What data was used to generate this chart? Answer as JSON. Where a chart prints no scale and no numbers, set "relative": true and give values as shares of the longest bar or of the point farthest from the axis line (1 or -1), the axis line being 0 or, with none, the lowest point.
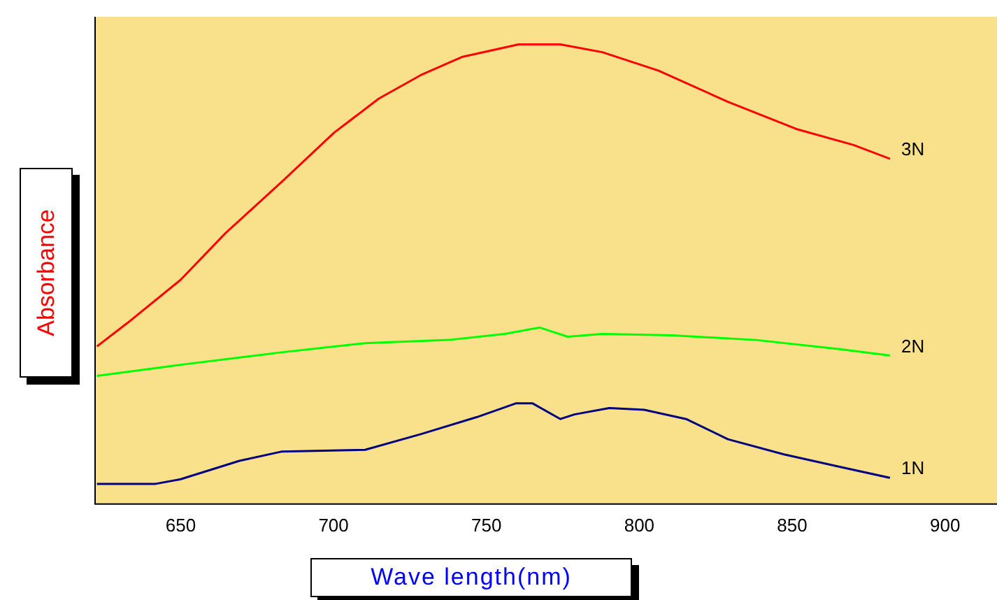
{
  "chart_data": {
    "type": "line",
    "xlabel": "Wave length(nm)",
    "ylabel": "Absorbance",
    "relative": true,
    "xlim": [
      622,
      917
    ],
    "xticks": [
      650,
      700,
      750,
      800,
      850,
      900
    ],
    "grid": false,
    "legend": false,
    "marker": "none",
    "line_style": "solid",
    "series": [
      {
        "name": "3N",
        "color": "#ff0000",
        "x": [
          622.6,
          632.6,
          650,
          664.6,
          682.9,
          700.2,
          714.8,
          728.5,
          742.2,
          760.5,
          774.2,
          787.9,
          806.2,
          829,
          851.8,
          870.1,
          882
        ],
        "values": [
          0.343,
          0.394,
          0.488,
          0.589,
          0.7,
          0.808,
          0.882,
          0.933,
          0.973,
          1.0,
          1.0,
          0.983,
          0.943,
          0.875,
          0.815,
          0.781,
          0.751
        ]
      },
      {
        "name": "2N",
        "color": "#00ff00",
        "x": [
          622.6,
          650,
          682.9,
          710.3,
          737.7,
          756,
          767.4,
          776.6,
          787.9,
          810.7,
          838.1,
          865.5,
          882
        ],
        "values": [
          0.279,
          0.303,
          0.33,
          0.35,
          0.357,
          0.37,
          0.384,
          0.364,
          0.37,
          0.367,
          0.357,
          0.337,
          0.323
        ]
      },
      {
        "name": "1N",
        "color": "#000080",
        "x": [
          622.6,
          641.8,
          650,
          669.2,
          682.9,
          710.3,
          728.5,
          746.8,
          759.6,
          765.1,
          774.2,
          778.8,
          790.2,
          801.6,
          815.3,
          829,
          847.3,
          865.5,
          882
        ],
        "values": [
          0.044,
          0.044,
          0.054,
          0.094,
          0.114,
          0.118,
          0.152,
          0.189,
          0.219,
          0.219,
          0.185,
          0.195,
          0.209,
          0.205,
          0.185,
          0.141,
          0.108,
          0.081,
          0.057
        ]
      }
    ]
  }
}
